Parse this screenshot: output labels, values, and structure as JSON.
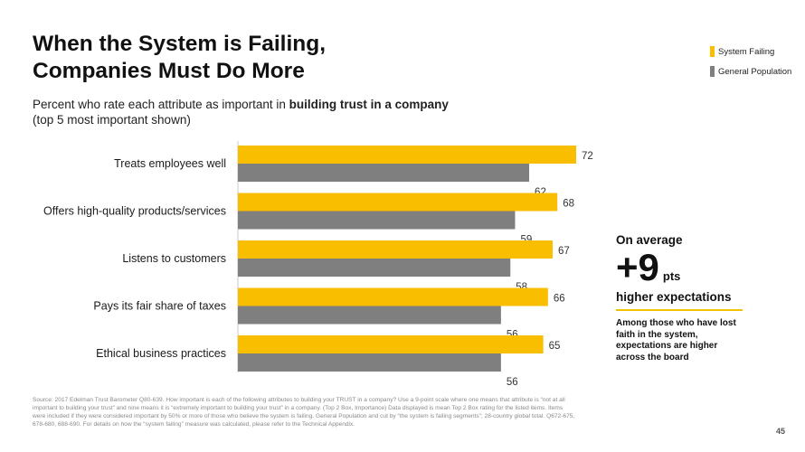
{
  "title_line1": "When the System is Failing,",
  "title_line2": "Companies Must Do More",
  "subtitle_prefix": "Percent who rate each attribute as important in ",
  "subtitle_bold": "building trust in a company",
  "subtitle_line2": "(top 5 most important shown)",
  "legend": [
    {
      "label": "System Failing",
      "color": "#f9be00"
    },
    {
      "label": "General Population",
      "color": "#7f7f7f"
    }
  ],
  "chart_data": {
    "type": "bar",
    "orientation": "horizontal",
    "categories": [
      "Treats employees well",
      "Offers high-quality products/services",
      "Listens to customers",
      "Pays its fair share of taxes",
      "Ethical business practices"
    ],
    "series": [
      {
        "name": "System Failing",
        "values": [
          72,
          68,
          67,
          66,
          65
        ],
        "color": "#f9be00"
      },
      {
        "name": "General Population",
        "values": [
          62,
          59,
          58,
          56,
          56
        ],
        "color": "#7f7f7f"
      }
    ],
    "xlim": [
      0,
      72
    ],
    "grid": false,
    "legend_position": "top-right",
    "data_labels": true
  },
  "callout": {
    "on_average": "On average",
    "big_number": "+9",
    "pts": "pts",
    "higher": "higher expectations",
    "note": "Among those who have lost faith in the system, expectations are higher across the board"
  },
  "source": "Source: 2017 Edelman Trust Barometer Q80-639. How important is each of the following attributes to building your TRUST in a company? Use a 9-point scale where one means that attribute is “not at all important to building your trust” and nine means it is “extremely important to building your trust” in a company. (Top 2 Box, Importance) Data displayed is mean Top 2 Box rating for the listed items. Items were included if they were considered important by 50% or more of those who believe the system is failing. General Population and cut by “the system is failing segments”; 28-country global total. Q672-675, 678-680, 688-690. For details on how the “system failing” measure was calculated, please refer to the Technical Appendix.",
  "page_number": "45"
}
